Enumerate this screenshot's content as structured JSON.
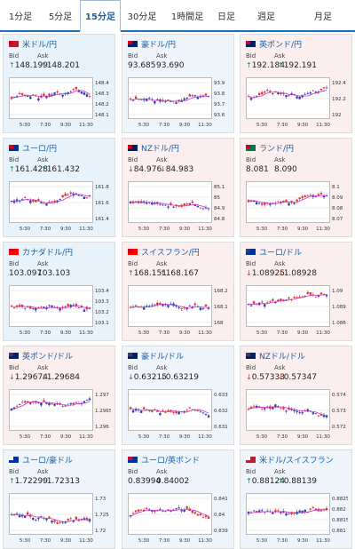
{
  "tabs": [
    {
      "label": "1分足",
      "active": false
    },
    {
      "label": "5分足",
      "active": false
    },
    {
      "label": "15分足",
      "active": true
    },
    {
      "label": "30分足",
      "active": false
    },
    {
      "label": "1時間足",
      "active": false
    },
    {
      "label": "日足",
      "active": false
    },
    {
      "label": "週足",
      "active": false
    },
    {
      "label": "月足",
      "active": false
    }
  ],
  "labels": {
    "bid": "Bid",
    "ask": "Ask"
  },
  "colors": {
    "up_candle": "#e0313a",
    "down_candle": "#2f3fb0",
    "ma_line": "#c733c7",
    "accent": "#1a5fa0",
    "up_arrow": "#1a8a4a",
    "down_arrow": "#c0392b"
  },
  "cards": [
    {
      "name": "米ドル/円",
      "flag": "us-jp",
      "bid": "148.199",
      "ask": "148.201",
      "trend": "up",
      "y_ticks": [
        "148.4",
        "148.3",
        "148.2",
        "148.1"
      ],
      "x_ticks": [
        "5:30",
        "7:30",
        "9:30",
        "11:30"
      ]
    },
    {
      "name": "豪ドル/円",
      "flag": "au-jp",
      "bid": "93.685",
      "ask": "93.690",
      "trend": "none",
      "y_ticks": [
        "93.9",
        "93.8",
        "93.7",
        "93.6"
      ],
      "x_ticks": [
        "5:30",
        "7:30",
        "9:30",
        "11:30"
      ]
    },
    {
      "name": "英ポンド/円",
      "flag": "gb-jp",
      "bid": "192.184",
      "ask": "192.191",
      "trend": "up",
      "y_ticks": [
        "192.4",
        "192.2",
        "192"
      ],
      "x_ticks": [
        "5:30",
        "7:30",
        "9:30",
        "11:30"
      ]
    },
    {
      "name": "ユーロ/円",
      "flag": "eu-jp",
      "bid": "161.428",
      "ask": "161.432",
      "trend": "up",
      "y_ticks": [
        "161.8",
        "161.6",
        "161.4"
      ],
      "x_ticks": [
        "5:30",
        "7:30",
        "9:30",
        "11:30"
      ]
    },
    {
      "name": "NZドル/円",
      "flag": "nz-jp",
      "bid": "84.976",
      "ask": "84.983",
      "trend": "down",
      "y_ticks": [
        "85.1",
        "85",
        "84.9",
        "84.8"
      ],
      "x_ticks": [
        "5:30",
        "7:30",
        "9:30",
        "11:30"
      ]
    },
    {
      "name": "ランド/円",
      "flag": "za-jp",
      "bid": "8.081",
      "ask": "8.090",
      "trend": "none",
      "y_ticks": [
        "8.1",
        "8.09",
        "8.08",
        "8.07"
      ],
      "x_ticks": [
        "5:30",
        "7:30",
        "9:30",
        "11:30"
      ]
    },
    {
      "name": "カナダドル/円",
      "flag": "ca-jp",
      "bid": "103.097",
      "ask": "103.103",
      "trend": "none",
      "y_ticks": [
        "103.4",
        "103.3",
        "103.2",
        "103.1"
      ],
      "x_ticks": [
        "5:30",
        "7:30",
        "9:30",
        "11:30"
      ]
    },
    {
      "name": "スイスフラン/円",
      "flag": "ch-jp",
      "bid": "168.151",
      "ask": "168.167",
      "trend": "up",
      "y_ticks": [
        "168.2",
        "168.1",
        "168"
      ],
      "x_ticks": [
        "5:30",
        "7:30",
        "9:30",
        "11:30"
      ]
    },
    {
      "name": "ユーロ/ドル",
      "flag": "eu-us",
      "bid": "1.08925",
      "ask": "1.08928",
      "trend": "down",
      "y_ticks": [
        "1.09",
        "1.089",
        "1.088"
      ],
      "x_ticks": [
        "5:30",
        "7:30",
        "9:30",
        "11:30"
      ]
    },
    {
      "name": "英ポンド/ドル",
      "flag": "gb-us",
      "bid": "1.29674",
      "ask": "1.29684",
      "trend": "down",
      "y_ticks": [
        "1.297",
        "1.2965",
        "1.296"
      ],
      "x_ticks": [
        "5:30",
        "7:30",
        "9:30",
        "11:30"
      ]
    },
    {
      "name": "豪ドル/ドル",
      "flag": "au-us",
      "bid": "0.63215",
      "ask": "0.63219",
      "trend": "down",
      "y_ticks": [
        "0.633",
        "0.632",
        "0.631"
      ],
      "x_ticks": [
        "5:30",
        "7:30",
        "9:30",
        "11:30"
      ]
    },
    {
      "name": "NZドル/ドル",
      "flag": "nz-us",
      "bid": "0.57333",
      "ask": "0.57347",
      "trend": "down",
      "y_ticks": [
        "0.574",
        "0.573",
        "0.572"
      ],
      "x_ticks": [
        "5:30",
        "7:30",
        "9:30",
        "11:30"
      ]
    },
    {
      "name": "ユーロ/豪ドル",
      "flag": "eu-au",
      "bid": "1.72299",
      "ask": "1.72313",
      "trend": "up",
      "y_ticks": [
        "1.73",
        "1.725",
        "1.72"
      ],
      "x_ticks": [
        "5:30",
        "7:30",
        "9:30",
        "11:30"
      ]
    },
    {
      "name": "ユーロ/英ポンド",
      "flag": "eu-gb",
      "bid": "0.83994",
      "ask": "0.84002",
      "trend": "none",
      "y_ticks": [
        "0.841",
        "0.84",
        "0.839"
      ],
      "x_ticks": [
        "5:30",
        "7:30",
        "9:30",
        "11:30"
      ]
    },
    {
      "name": "米ドル/スイスフラン",
      "flag": "us-ch",
      "bid": "0.88124",
      "ask": "0.88139",
      "trend": "up",
      "y_ticks": [
        "0.8825",
        "0.882",
        "0.8815",
        "0.881"
      ],
      "x_ticks": [
        "5:30",
        "7:30",
        "9:30",
        "11:30"
      ]
    }
  ]
}
